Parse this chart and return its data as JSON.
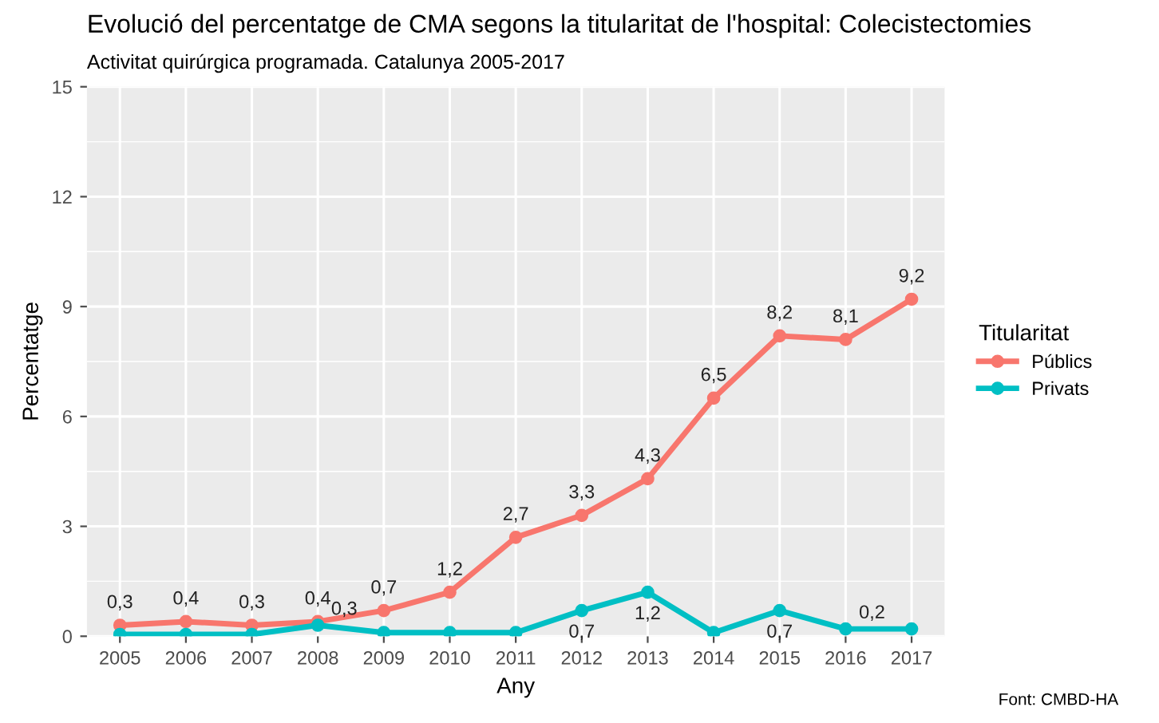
{
  "chart_data": {
    "type": "line",
    "title": "Evolució del percentatge de CMA segons la titularitat de l'hospital: Colecistectomies",
    "subtitle": "Activitat quirúrgica programada. Catalunya 2005-2017",
    "xlabel": "Any",
    "ylabel": "Percentatge",
    "legend_title": "Titularitat",
    "legend": "right",
    "grid": true,
    "marker": "circle",
    "line_style": "solid",
    "categories": [
      "2005",
      "2006",
      "2007",
      "2008",
      "2009",
      "2010",
      "2011",
      "2012",
      "2013",
      "2014",
      "2015",
      "2016",
      "2017"
    ],
    "ylim": [
      0,
      15
    ],
    "yticks": [
      0,
      3,
      6,
      9,
      12,
      15
    ],
    "series": [
      {
        "name": "Públics",
        "color": "#f8766d",
        "values": [
          0.3,
          0.4,
          0.3,
          0.4,
          0.7,
          1.2,
          2.7,
          3.3,
          4.3,
          6.5,
          8.2,
          8.1,
          9.2
        ],
        "value_labels": [
          "0,3",
          "0,4",
          "0,3",
          "0,4",
          "0,7",
          "1,2",
          "2,7",
          "3,3",
          "4,3",
          "6,5",
          "8,2",
          "8,1",
          "9,2"
        ]
      },
      {
        "name": "Privats",
        "color": "#00bfc4",
        "values": [
          0.05,
          0.05,
          0.05,
          0.3,
          0.1,
          0.1,
          0.1,
          0.7,
          1.2,
          0.1,
          0.7,
          0.2,
          0.2
        ],
        "value_labels": [
          null,
          null,
          null,
          "0,3",
          null,
          null,
          null,
          "0,7",
          "1,2",
          null,
          "0,7",
          "0,2",
          null
        ]
      }
    ],
    "annotations": [
      "Font: CMBD-HA"
    ]
  }
}
